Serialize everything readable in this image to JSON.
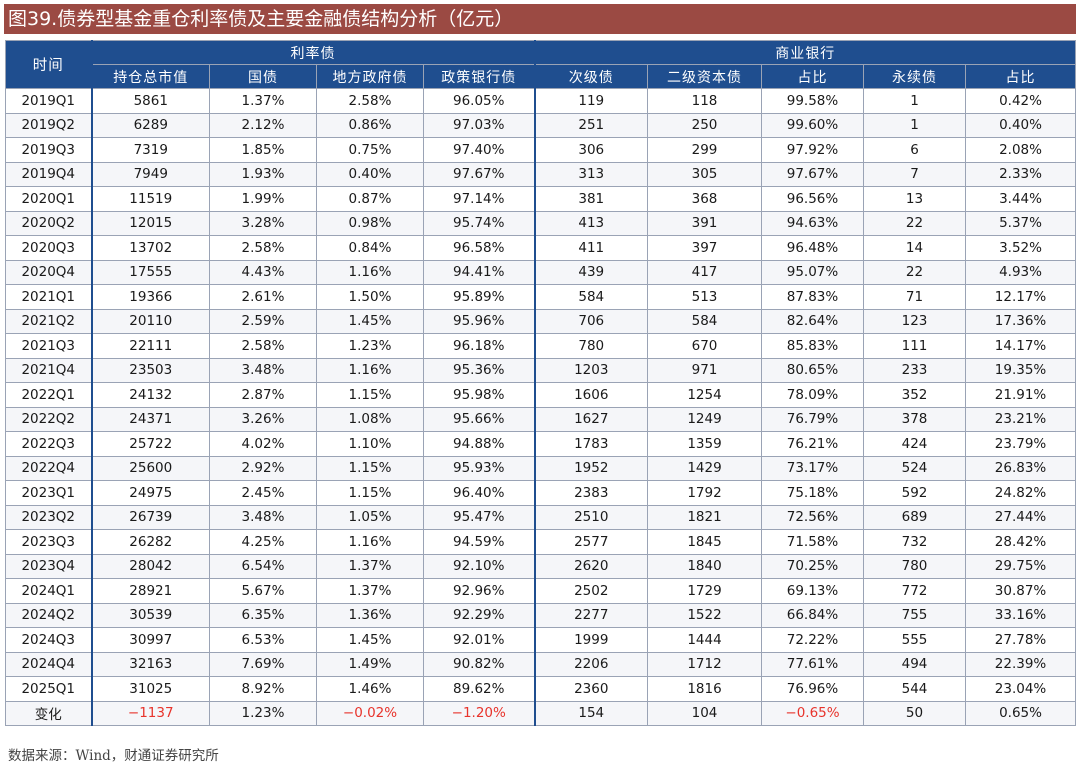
{
  "title": "图39.债券型基金重仓利率债及主要金融债结构分析（亿元）",
  "headers": {
    "time": "时间",
    "group_rate": "利率债",
    "group_bank": "商业银行",
    "cols": [
      "持仓总市值",
      "国债",
      "地方政府债",
      "政策银行债",
      "次级债",
      "二级资本债",
      "占比",
      "永续债",
      "占比"
    ]
  },
  "rows": [
    [
      "2019Q1",
      "5861",
      "1.37%",
      "2.58%",
      "96.05%",
      "119",
      "118",
      "99.58%",
      "1",
      "0.42%"
    ],
    [
      "2019Q2",
      "6289",
      "2.12%",
      "0.86%",
      "97.03%",
      "251",
      "250",
      "99.60%",
      "1",
      "0.40%"
    ],
    [
      "2019Q3",
      "7319",
      "1.85%",
      "0.75%",
      "97.40%",
      "306",
      "299",
      "97.92%",
      "6",
      "2.08%"
    ],
    [
      "2019Q4",
      "7949",
      "1.93%",
      "0.40%",
      "97.67%",
      "313",
      "305",
      "97.67%",
      "7",
      "2.33%"
    ],
    [
      "2020Q1",
      "11519",
      "1.99%",
      "0.87%",
      "97.14%",
      "381",
      "368",
      "96.56%",
      "13",
      "3.44%"
    ],
    [
      "2020Q2",
      "12015",
      "3.28%",
      "0.98%",
      "95.74%",
      "413",
      "391",
      "94.63%",
      "22",
      "5.37%"
    ],
    [
      "2020Q3",
      "13702",
      "2.58%",
      "0.84%",
      "96.58%",
      "411",
      "397",
      "96.48%",
      "14",
      "3.52%"
    ],
    [
      "2020Q4",
      "17555",
      "4.43%",
      "1.16%",
      "94.41%",
      "439",
      "417",
      "95.07%",
      "22",
      "4.93%"
    ],
    [
      "2021Q1",
      "19366",
      "2.61%",
      "1.50%",
      "95.89%",
      "584",
      "513",
      "87.83%",
      "71",
      "12.17%"
    ],
    [
      "2021Q2",
      "20110",
      "2.59%",
      "1.45%",
      "95.96%",
      "706",
      "584",
      "82.64%",
      "123",
      "17.36%"
    ],
    [
      "2021Q3",
      "22111",
      "2.58%",
      "1.23%",
      "96.18%",
      "780",
      "670",
      "85.83%",
      "111",
      "14.17%"
    ],
    [
      "2021Q4",
      "23503",
      "3.48%",
      "1.16%",
      "95.36%",
      "1203",
      "971",
      "80.65%",
      "233",
      "19.35%"
    ],
    [
      "2022Q1",
      "24132",
      "2.87%",
      "1.15%",
      "95.98%",
      "1606",
      "1254",
      "78.09%",
      "352",
      "21.91%"
    ],
    [
      "2022Q2",
      "24371",
      "3.26%",
      "1.08%",
      "95.66%",
      "1627",
      "1249",
      "76.79%",
      "378",
      "23.21%"
    ],
    [
      "2022Q3",
      "25722",
      "4.02%",
      "1.10%",
      "94.88%",
      "1783",
      "1359",
      "76.21%",
      "424",
      "23.79%"
    ],
    [
      "2022Q4",
      "25600",
      "2.92%",
      "1.15%",
      "95.93%",
      "1952",
      "1429",
      "73.17%",
      "524",
      "26.83%"
    ],
    [
      "2023Q1",
      "24975",
      "2.45%",
      "1.15%",
      "96.40%",
      "2383",
      "1792",
      "75.18%",
      "592",
      "24.82%"
    ],
    [
      "2023Q2",
      "26739",
      "3.48%",
      "1.05%",
      "95.47%",
      "2510",
      "1821",
      "72.56%",
      "689",
      "27.44%"
    ],
    [
      "2023Q3",
      "26282",
      "4.25%",
      "1.16%",
      "94.59%",
      "2577",
      "1845",
      "71.58%",
      "732",
      "28.42%"
    ],
    [
      "2023Q4",
      "28042",
      "6.54%",
      "1.37%",
      "92.10%",
      "2620",
      "1840",
      "70.25%",
      "780",
      "29.75%"
    ],
    [
      "2024Q1",
      "28921",
      "5.67%",
      "1.37%",
      "92.96%",
      "2502",
      "1729",
      "69.13%",
      "772",
      "30.87%"
    ],
    [
      "2024Q2",
      "30539",
      "6.35%",
      "1.36%",
      "92.29%",
      "2277",
      "1522",
      "66.84%",
      "755",
      "33.16%"
    ],
    [
      "2024Q3",
      "30997",
      "6.53%",
      "1.45%",
      "92.01%",
      "1999",
      "1444",
      "72.22%",
      "555",
      "27.78%"
    ],
    [
      "2024Q4",
      "32163",
      "7.69%",
      "1.49%",
      "90.82%",
      "2206",
      "1712",
      "77.61%",
      "494",
      "22.39%"
    ],
    [
      "2025Q1",
      "31025",
      "8.92%",
      "1.46%",
      "89.62%",
      "2360",
      "1816",
      "76.96%",
      "544",
      "23.04%"
    ],
    [
      "变化",
      "−1137",
      "1.23%",
      "−0.02%",
      "−1.20%",
      "154",
      "104",
      "−0.65%",
      "50",
      "0.65%"
    ]
  ],
  "colors": {
    "title_bg": "#9b4a43",
    "header_bg": "#1f4e8f",
    "negative": "#e8342c"
  },
  "source": "数据来源：Wind，财通证券研究所"
}
